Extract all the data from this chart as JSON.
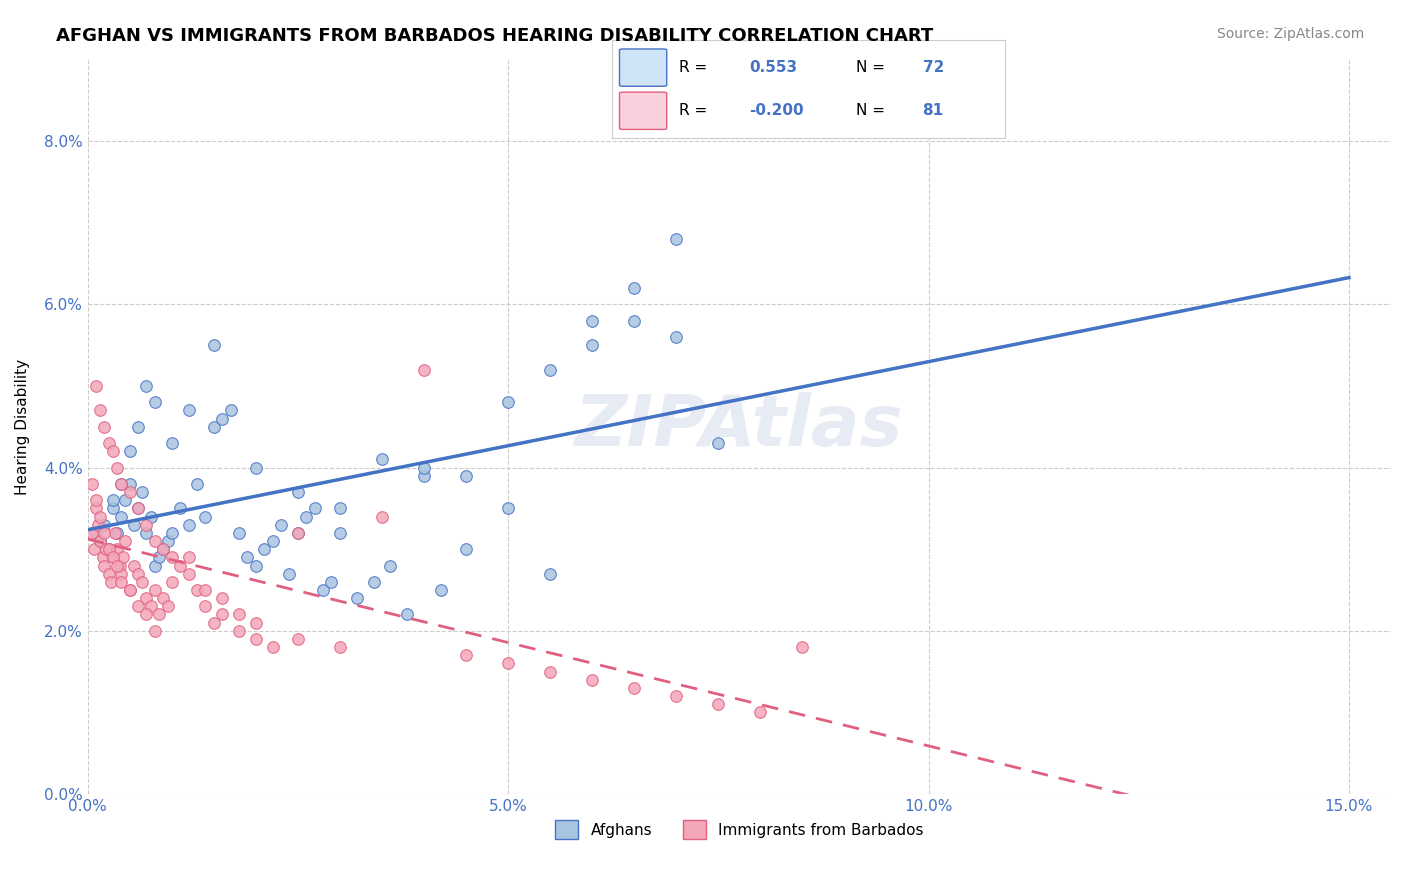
{
  "title": "AFGHAN VS IMMIGRANTS FROM BARBADOS HEARING DISABILITY CORRELATION CHART",
  "source": "Source: ZipAtlas.com",
  "ylabel": "Hearing Disability",
  "xlabel_ticks": [
    "0.0%",
    "5.0%",
    "10.0%",
    "15.0%"
  ],
  "xlabel_vals": [
    0.0,
    5.0,
    10.0,
    15.0
  ],
  "ylim": [
    0.0,
    9.0
  ],
  "xlim": [
    0.0,
    15.5
  ],
  "yticks": [
    0.0,
    2.0,
    4.0,
    6.0,
    8.0
  ],
  "ytick_labels": [
    "0.0%",
    "2.0%",
    "4.0%",
    "6.0%",
    "8.0%"
  ],
  "afghan_color": "#a8c4e0",
  "barbados_color": "#f4a7b9",
  "afghan_line_color": "#4472c4",
  "barbados_line_color": "#e06080",
  "legend_box_color": "#d0e4f7",
  "legend_box2_color": "#f9d0dc",
  "R_afghan": 0.553,
  "N_afghan": 72,
  "R_barbados": -0.2,
  "N_barbados": 81,
  "watermark": "ZIPAtlas",
  "afghan_scatter_x": [
    0.1,
    0.15,
    0.2,
    0.25,
    0.3,
    0.35,
    0.4,
    0.45,
    0.5,
    0.55,
    0.6,
    0.65,
    0.7,
    0.75,
    0.8,
    0.85,
    0.9,
    0.95,
    1.0,
    1.1,
    1.2,
    1.3,
    1.4,
    1.5,
    1.6,
    1.7,
    1.8,
    1.9,
    2.0,
    2.1,
    2.2,
    2.3,
    2.4,
    2.5,
    2.6,
    2.7,
    2.8,
    2.9,
    3.0,
    3.2,
    3.4,
    3.6,
    3.8,
    4.0,
    4.2,
    4.5,
    5.0,
    5.5,
    6.0,
    6.5,
    7.0,
    7.5,
    0.3,
    0.4,
    0.5,
    0.6,
    0.7,
    0.8,
    1.0,
    1.2,
    1.5,
    2.0,
    2.5,
    3.0,
    3.5,
    4.0,
    4.5,
    5.0,
    5.5,
    6.0,
    6.5,
    7.0
  ],
  "afghan_scatter_y": [
    3.2,
    3.1,
    3.3,
    3.0,
    3.5,
    3.2,
    3.4,
    3.6,
    3.8,
    3.3,
    3.5,
    3.7,
    3.2,
    3.4,
    2.8,
    2.9,
    3.0,
    3.1,
    3.2,
    3.5,
    3.3,
    3.8,
    3.4,
    4.5,
    4.6,
    4.7,
    3.2,
    2.9,
    2.8,
    3.0,
    3.1,
    3.3,
    2.7,
    3.2,
    3.4,
    3.5,
    2.5,
    2.6,
    3.2,
    2.4,
    2.6,
    2.8,
    2.2,
    3.9,
    2.5,
    3.0,
    3.5,
    2.7,
    5.8,
    6.2,
    5.6,
    4.3,
    3.6,
    3.8,
    4.2,
    4.5,
    5.0,
    4.8,
    4.3,
    4.7,
    5.5,
    4.0,
    3.7,
    3.5,
    4.1,
    4.0,
    3.9,
    4.8,
    5.2,
    5.5,
    5.8,
    6.8
  ],
  "barbados_scatter_x": [
    0.05,
    0.08,
    0.1,
    0.12,
    0.15,
    0.18,
    0.2,
    0.22,
    0.25,
    0.28,
    0.3,
    0.32,
    0.35,
    0.38,
    0.4,
    0.42,
    0.45,
    0.5,
    0.55,
    0.6,
    0.65,
    0.7,
    0.75,
    0.8,
    0.85,
    0.9,
    0.95,
    1.0,
    1.1,
    1.2,
    1.3,
    1.4,
    1.5,
    1.6,
    1.8,
    2.0,
    2.2,
    2.5,
    0.1,
    0.15,
    0.2,
    0.25,
    0.3,
    0.35,
    0.4,
    0.5,
    0.6,
    0.7,
    0.8,
    0.9,
    1.0,
    1.2,
    1.4,
    1.6,
    1.8,
    2.0,
    2.5,
    3.0,
    3.5,
    4.0,
    4.5,
    5.0,
    5.5,
    6.0,
    6.5,
    7.0,
    7.5,
    8.0,
    8.5,
    0.05,
    0.1,
    0.15,
    0.2,
    0.25,
    0.3,
    0.35,
    0.4,
    0.5,
    0.6,
    0.7,
    0.8
  ],
  "barbados_scatter_y": [
    3.2,
    3.0,
    3.5,
    3.3,
    3.1,
    2.9,
    2.8,
    3.0,
    2.7,
    2.6,
    2.9,
    3.2,
    3.0,
    2.8,
    2.7,
    2.9,
    3.1,
    2.5,
    2.8,
    2.7,
    2.6,
    2.4,
    2.3,
    2.5,
    2.2,
    2.4,
    2.3,
    2.6,
    2.8,
    2.9,
    2.5,
    2.3,
    2.1,
    2.2,
    2.0,
    1.9,
    1.8,
    3.2,
    5.0,
    4.7,
    4.5,
    4.3,
    4.2,
    4.0,
    3.8,
    3.7,
    3.5,
    3.3,
    3.1,
    3.0,
    2.9,
    2.7,
    2.5,
    2.4,
    2.2,
    2.1,
    1.9,
    1.8,
    3.4,
    5.2,
    1.7,
    1.6,
    1.5,
    1.4,
    1.3,
    1.2,
    1.1,
    1.0,
    1.8,
    3.8,
    3.6,
    3.4,
    3.2,
    3.0,
    2.9,
    2.8,
    2.6,
    2.5,
    2.3,
    2.2,
    2.0
  ]
}
